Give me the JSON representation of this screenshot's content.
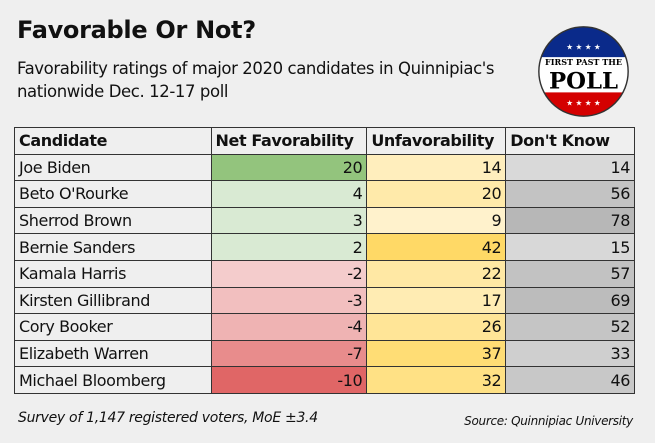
{
  "title": "Favorable Or Not?",
  "subtitle": "Favorability ratings of major 2020 candidates in Quinnipiac's nationwide Dec. 12-17 poll",
  "logo": {
    "text_top": "FIRST PAST THE",
    "text_main": "POLL",
    "colors": {
      "top": "#0a2a8a",
      "bottom": "#d40000"
    }
  },
  "chart_data": {
    "type": "table",
    "columns": [
      "Candidate",
      "Net Favorability",
      "Unfavorability",
      "Don't Know"
    ],
    "rows": [
      {
        "candidate": "Joe Biden",
        "net": 20,
        "unfav": 14,
        "dk": 14
      },
      {
        "candidate": "Beto O'Rourke",
        "net": 4,
        "unfav": 20,
        "dk": 56
      },
      {
        "candidate": "Sherrod Brown",
        "net": 3,
        "unfav": 9,
        "dk": 78
      },
      {
        "candidate": "Bernie Sanders",
        "net": 2,
        "unfav": 42,
        "dk": 15
      },
      {
        "candidate": "Kamala Harris",
        "net": -2,
        "unfav": 22,
        "dk": 57
      },
      {
        "candidate": "Kirsten Gillibrand",
        "net": -3,
        "unfav": 17,
        "dk": 69
      },
      {
        "candidate": "Cory Booker",
        "net": -4,
        "unfav": 26,
        "dk": 52
      },
      {
        "candidate": "Elizabeth Warren",
        "net": -7,
        "unfav": 37,
        "dk": 33
      },
      {
        "candidate": "Michael Bloomberg",
        "net": -10,
        "unfav": 32,
        "dk": 46
      }
    ],
    "color_scales": {
      "net_positive": [
        "#d9ead3",
        "#93c47d"
      ],
      "net_negative": [
        "#f4cccc",
        "#e06666"
      ],
      "unfav": [
        "#fff2cc",
        "#ffd966"
      ],
      "dk": [
        "#d9d9d9",
        "#b7b7b7"
      ]
    }
  },
  "footer": {
    "note": "Survey of 1,147 registered voters, MoE ±3.4",
    "source": "Source: Quinnipiac University"
  }
}
